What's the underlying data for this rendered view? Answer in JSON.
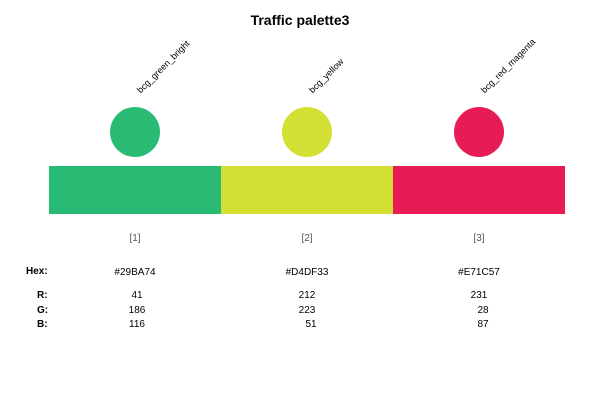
{
  "title": "Traffic palette3",
  "row_labels": {
    "hex": "Hex:",
    "r": "R:",
    "g": "G:",
    "b": "B:"
  },
  "colors": [
    {
      "name": "bcg_green_bright",
      "index": "[1]",
      "hex": "#29BA74",
      "r": "41",
      "g": "186",
      "b": "116"
    },
    {
      "name": "bcg_yellow",
      "index": "[2]",
      "hex": "#D4DF33",
      "r": "212",
      "g": "223",
      "b": "51"
    },
    {
      "name": "bcg_red_magenta",
      "index": "[3]",
      "hex": "#E71C57",
      "r": "231",
      "g": "28",
      "b": "87"
    }
  ]
}
